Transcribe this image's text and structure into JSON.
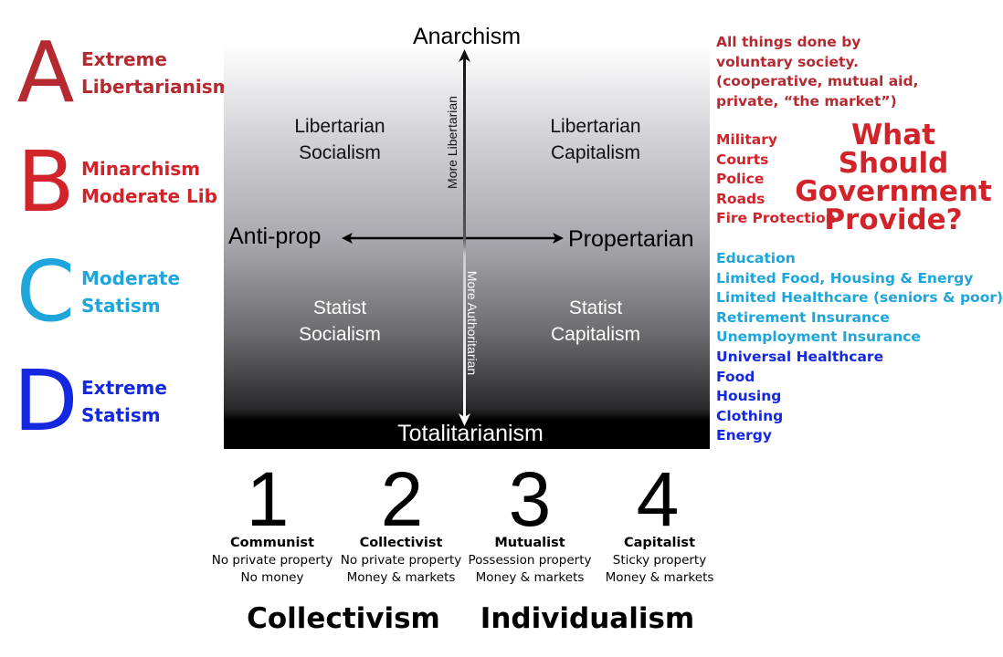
{
  "colors": {
    "level_a": "#b52a30",
    "level_b": "#d0232a",
    "level_c": "#1ea5dc",
    "level_d": "#1428e0"
  },
  "levels": [
    {
      "letter": "A",
      "line1": "Extreme",
      "line2": "Libertarianism"
    },
    {
      "letter": "B",
      "line1": "Minarchism",
      "line2": "Moderate Lib"
    },
    {
      "letter": "C",
      "line1": "Moderate",
      "line2": "Statism"
    },
    {
      "letter": "D",
      "line1": "Extreme",
      "line2": "Statism"
    }
  ],
  "compass": {
    "top": "Anarchism",
    "bottom": "Totalitarianism",
    "left": "Anti-prop",
    "right": "Propertarian",
    "up_axis": "More Libertarian",
    "down_axis": "More Authoritarian",
    "quadrants": [
      {
        "line1": "Libertarian",
        "line2": "Socialism"
      },
      {
        "line1": "Libertarian",
        "line2": "Capitalism"
      },
      {
        "line1": "Statist",
        "line2": "Socialism"
      },
      {
        "line1": "Statist",
        "line2": "Capitalism"
      }
    ]
  },
  "systems": [
    {
      "num": "1",
      "name": "Communist",
      "l1": "No private property",
      "l2": "No money"
    },
    {
      "num": "2",
      "name": "Collectivist",
      "l1": "No private property",
      "l2": "Money & markets"
    },
    {
      "num": "3",
      "name": "Mutualist",
      "l1": "Possession property",
      "l2": "Money & markets"
    },
    {
      "num": "4",
      "name": "Capitalist",
      "l1": "Sticky property",
      "l2": "Money & markets"
    }
  ],
  "groups": {
    "left": "Collectivism",
    "right": "Individualism"
  },
  "question": {
    "l1": "What Should",
    "l2": "Government",
    "l3": "Provide?"
  },
  "provisions": {
    "a": [
      "All things done by",
      "voluntary society.",
      "(cooperative, mutual aid,",
      "private, “the market”)"
    ],
    "b": [
      "Military",
      "Courts",
      "Police",
      "Roads",
      "Fire Protection"
    ],
    "c": [
      "Education",
      "Limited Food, Housing & Energy",
      "Limited Healthcare (seniors & poor)",
      "Retirement Insurance",
      "Unemployment Insurance"
    ],
    "d": [
      "Universal Healthcare",
      "Food",
      "Housing",
      "Clothing",
      "Energy"
    ]
  }
}
